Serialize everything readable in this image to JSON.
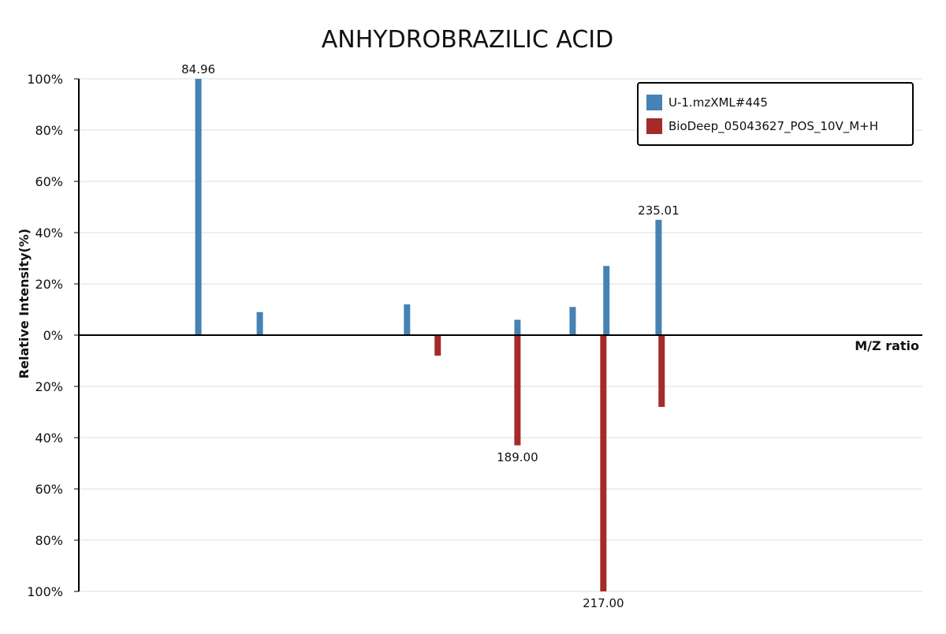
{
  "chart_data": {
    "type": "bar",
    "subtype": "mirror-spectrum",
    "title": "ANHYDROBRAZILIC ACID",
    "xlabel": "M/Z ratio",
    "ylabel": "Relative Intensity(%)",
    "ylim": [
      -100,
      100
    ],
    "y_tick_labels": [
      "100%",
      "80%",
      "60%",
      "40%",
      "20%",
      "0%",
      "20%",
      "40%",
      "60%",
      "80%",
      "100%"
    ],
    "y_tick_values": [
      100,
      80,
      60,
      40,
      20,
      0,
      -20,
      -40,
      -60,
      -80,
      -100
    ],
    "xlim": [
      46,
      321
    ],
    "grid": true,
    "legend_position": "top-right",
    "series": [
      {
        "name": "U-1.mzXML#445",
        "color": "#4682b4",
        "direction": "up",
        "x": [
          84.96,
          105.0,
          153.0,
          189.0,
          207.0,
          218.0,
          235.01
        ],
        "values": [
          100,
          9,
          12,
          6,
          11,
          27,
          45
        ]
      },
      {
        "name": "BioDeep_05043627_POS_10V_M+H",
        "color": "#a52a2a",
        "direction": "down",
        "x": [
          163.0,
          189.0,
          217.0,
          236.0
        ],
        "values": [
          8,
          43,
          100,
          28
        ]
      }
    ],
    "annotations": [
      {
        "text": "84.96",
        "x": 84.96,
        "y": 100
      },
      {
        "text": "235.01",
        "x": 235.01,
        "y": 45
      },
      {
        "text": "189.00",
        "x": 189.0,
        "y": -43
      },
      {
        "text": "217.00",
        "x": 217.0,
        "y": -100
      }
    ]
  }
}
